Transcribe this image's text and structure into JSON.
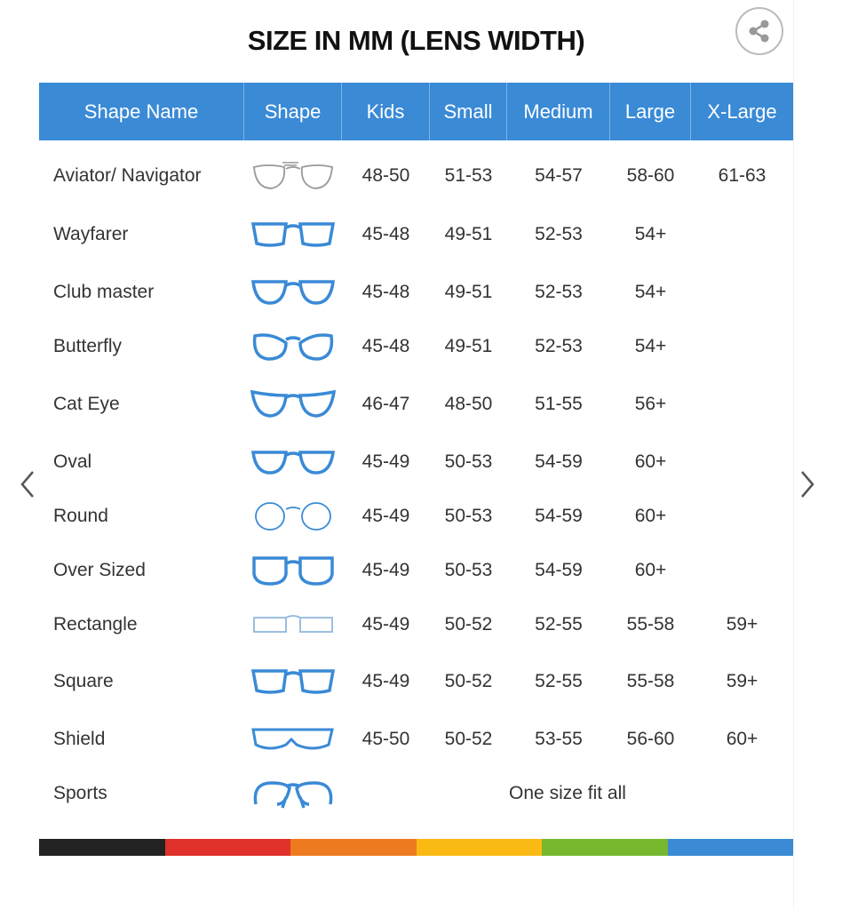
{
  "title": "SIZE IN MM (LENS WIDTH)",
  "share_icon": "share-icon",
  "columns": [
    "Shape Name",
    "Shape",
    "Kids",
    "Small",
    "Medium",
    "Large",
    "X-Large"
  ],
  "rows": [
    {
      "name": "Aviator/ Navigator",
      "icon": "aviator",
      "color": "#9a9a9a",
      "sizes": [
        "48-50",
        "51-53",
        "54-57",
        "58-60",
        "61-63"
      ]
    },
    {
      "name": "Wayfarer",
      "icon": "wayfarer",
      "color": "#3a8ad6",
      "sizes": [
        "45-48",
        "49-51",
        "52-53",
        "54+",
        ""
      ]
    },
    {
      "name": "Club master",
      "icon": "clubmaster",
      "color": "#3a8ad6",
      "sizes": [
        "45-48",
        "49-51",
        "52-53",
        "54+",
        ""
      ]
    },
    {
      "name": "Butterfly",
      "icon": "butterfly",
      "color": "#3a8ad6",
      "sizes": [
        "45-48",
        "49-51",
        "52-53",
        "54+",
        ""
      ]
    },
    {
      "name": "Cat Eye",
      "icon": "cateye",
      "color": "#3a8ad6",
      "sizes": [
        "46-47",
        "48-50",
        "51-55",
        "56+",
        ""
      ]
    },
    {
      "name": "Oval",
      "icon": "oval",
      "color": "#3a8ad6",
      "sizes": [
        "45-49",
        "50-53",
        "54-59",
        "60+",
        ""
      ]
    },
    {
      "name": "Round",
      "icon": "round",
      "color": "#3a8ad6",
      "sizes": [
        "45-49",
        "50-53",
        "54-59",
        "60+",
        ""
      ]
    },
    {
      "name": "Over Sized",
      "icon": "oversized",
      "color": "#3a8ad6",
      "sizes": [
        "45-49",
        "50-53",
        "54-59",
        "60+",
        ""
      ]
    },
    {
      "name": "Rectangle",
      "icon": "rectangle",
      "color": "#8fb8dc",
      "sizes": [
        "45-49",
        "50-52",
        "52-55",
        "55-58",
        "59+"
      ]
    },
    {
      "name": "Square",
      "icon": "square",
      "color": "#3a8ad6",
      "sizes": [
        "45-49",
        "50-52",
        "52-55",
        "55-58",
        "59+"
      ]
    },
    {
      "name": "Shield",
      "icon": "shield",
      "color": "#3a8ad6",
      "sizes": [
        "45-50",
        "50-52",
        "53-55",
        "56-60",
        "60+"
      ]
    },
    {
      "name": "Sports",
      "icon": "sports",
      "color": "#3a8ad6",
      "span_text": "One size fit all"
    }
  ],
  "color_bar": [
    "#222222",
    "#e0302a",
    "#ee7a1f",
    "#fbb914",
    "#76b72e",
    "#3a8ad6"
  ],
  "nav": {
    "prev_icon": "chevron-left-icon",
    "next_icon": "chevron-right-icon"
  }
}
